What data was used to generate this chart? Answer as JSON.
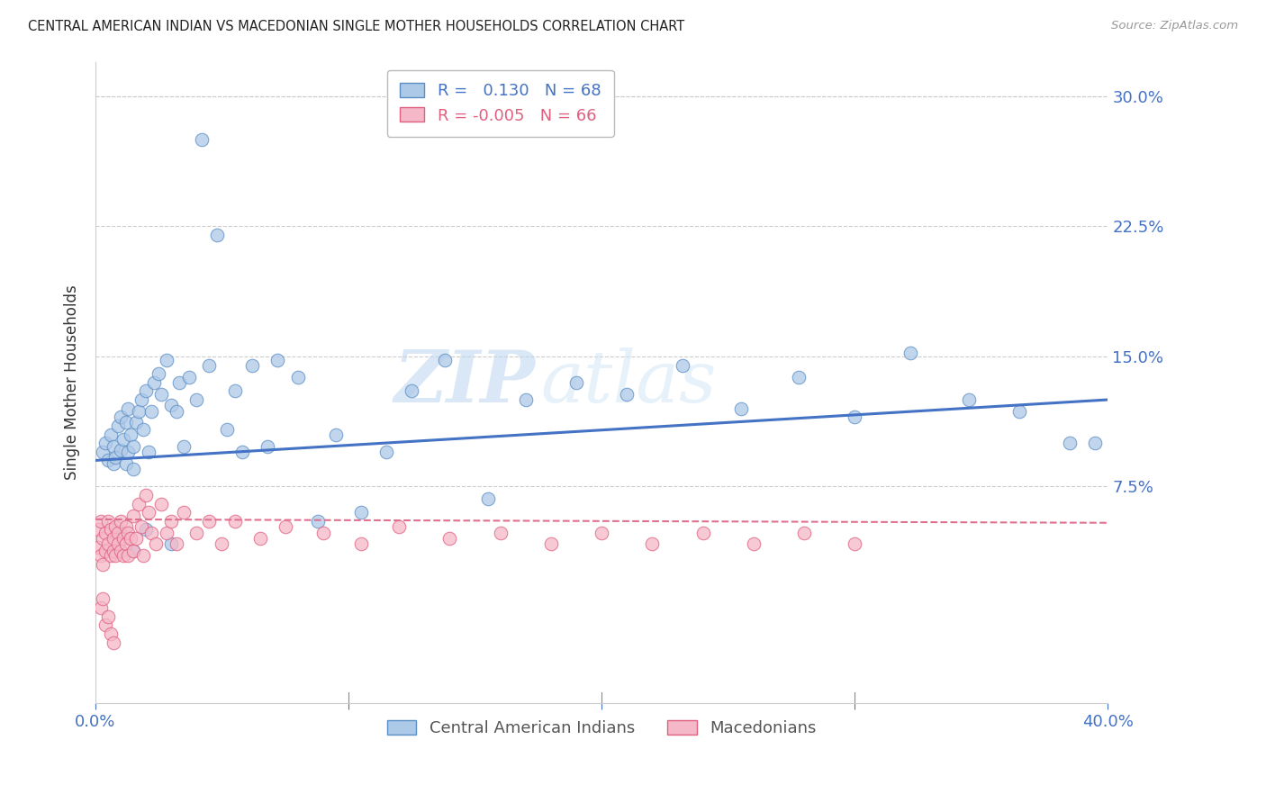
{
  "title": "CENTRAL AMERICAN INDIAN VS MACEDONIAN SINGLE MOTHER HOUSEHOLDS CORRELATION CHART",
  "source": "Source: ZipAtlas.com",
  "ylabel": "Single Mother Households",
  "xlim": [
    0.0,
    0.4
  ],
  "ylim": [
    -0.05,
    0.32
  ],
  "yticks": [
    0.075,
    0.15,
    0.225,
    0.3
  ],
  "ytick_labels": [
    "7.5%",
    "15.0%",
    "22.5%",
    "30.0%"
  ],
  "xticks": [
    0.0,
    0.1,
    0.2,
    0.3,
    0.4
  ],
  "xtick_labels": [
    "0.0%",
    "",
    "",
    "",
    "40.0%"
  ],
  "blue_R": 0.13,
  "blue_N": 68,
  "pink_R": -0.005,
  "pink_N": 66,
  "blue_color": "#adc9e8",
  "blue_edge_color": "#5b8ec4",
  "pink_color": "#f5b8c8",
  "pink_edge_color": "#e06080",
  "blue_line_color": "#4472c4",
  "pink_line_color": "#e07090",
  "watermark_zip": "ZIP",
  "watermark_atlas": "atlas",
  "legend_label_blue": "Central American Indians",
  "legend_label_pink": "Macedonians",
  "blue_scatter_x": [
    0.003,
    0.004,
    0.005,
    0.006,
    0.007,
    0.007,
    0.008,
    0.009,
    0.01,
    0.01,
    0.011,
    0.012,
    0.012,
    0.013,
    0.013,
    0.014,
    0.015,
    0.015,
    0.016,
    0.017,
    0.018,
    0.019,
    0.02,
    0.021,
    0.022,
    0.023,
    0.025,
    0.026,
    0.028,
    0.03,
    0.032,
    0.033,
    0.035,
    0.037,
    0.04,
    0.042,
    0.045,
    0.048,
    0.052,
    0.055,
    0.058,
    0.062,
    0.068,
    0.072,
    0.08,
    0.088,
    0.095,
    0.105,
    0.115,
    0.125,
    0.138,
    0.155,
    0.17,
    0.19,
    0.21,
    0.232,
    0.255,
    0.278,
    0.3,
    0.322,
    0.345,
    0.365,
    0.385,
    0.395,
    0.01,
    0.02,
    0.03,
    0.015
  ],
  "blue_scatter_y": [
    0.095,
    0.1,
    0.09,
    0.105,
    0.088,
    0.098,
    0.092,
    0.11,
    0.096,
    0.115,
    0.102,
    0.088,
    0.112,
    0.095,
    0.12,
    0.105,
    0.085,
    0.098,
    0.112,
    0.118,
    0.125,
    0.108,
    0.13,
    0.095,
    0.118,
    0.135,
    0.14,
    0.128,
    0.148,
    0.122,
    0.118,
    0.135,
    0.098,
    0.138,
    0.125,
    0.275,
    0.145,
    0.22,
    0.108,
    0.13,
    0.095,
    0.145,
    0.098,
    0.148,
    0.138,
    0.055,
    0.105,
    0.06,
    0.095,
    0.13,
    0.148,
    0.068,
    0.125,
    0.135,
    0.128,
    0.145,
    0.12,
    0.138,
    0.115,
    0.152,
    0.125,
    0.118,
    0.1,
    0.1,
    0.048,
    0.05,
    0.042,
    0.038
  ],
  "pink_scatter_x": [
    0.001,
    0.001,
    0.002,
    0.002,
    0.003,
    0.003,
    0.004,
    0.004,
    0.005,
    0.005,
    0.006,
    0.006,
    0.007,
    0.007,
    0.008,
    0.008,
    0.009,
    0.009,
    0.01,
    0.01,
    0.011,
    0.011,
    0.012,
    0.012,
    0.013,
    0.013,
    0.014,
    0.015,
    0.015,
    0.016,
    0.017,
    0.018,
    0.019,
    0.02,
    0.021,
    0.022,
    0.024,
    0.026,
    0.028,
    0.03,
    0.032,
    0.035,
    0.04,
    0.045,
    0.05,
    0.055,
    0.065,
    0.075,
    0.09,
    0.105,
    0.12,
    0.14,
    0.16,
    0.18,
    0.2,
    0.22,
    0.24,
    0.26,
    0.28,
    0.3,
    0.002,
    0.003,
    0.004,
    0.005,
    0.006,
    0.007
  ],
  "pink_scatter_y": [
    0.05,
    0.04,
    0.055,
    0.035,
    0.045,
    0.03,
    0.048,
    0.038,
    0.055,
    0.042,
    0.035,
    0.05,
    0.045,
    0.038,
    0.052,
    0.035,
    0.048,
    0.042,
    0.038,
    0.055,
    0.045,
    0.035,
    0.052,
    0.042,
    0.048,
    0.035,
    0.045,
    0.038,
    0.058,
    0.045,
    0.065,
    0.052,
    0.035,
    0.07,
    0.06,
    0.048,
    0.042,
    0.065,
    0.048,
    0.055,
    0.042,
    0.06,
    0.048,
    0.055,
    0.042,
    0.055,
    0.045,
    0.052,
    0.048,
    0.042,
    0.052,
    0.045,
    0.048,
    0.042,
    0.048,
    0.042,
    0.048,
    0.042,
    0.048,
    0.042,
    0.005,
    0.01,
    -0.005,
    0.0,
    -0.01,
    -0.015
  ]
}
